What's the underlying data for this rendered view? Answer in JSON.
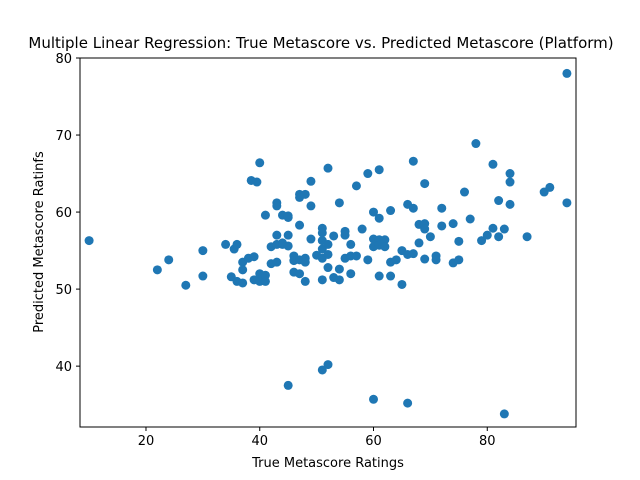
{
  "chart_data": {
    "type": "scatter",
    "title": "Multiple Linear Regression: True Metascore vs. Predicted Metascore (Platform)",
    "xlabel": "True Metascore Ratings",
    "ylabel": "Predicted Metascore Ratinfs",
    "xlim": [
      8.4,
      95.6
    ],
    "ylim": [
      32.1,
      80
    ],
    "xticks": [
      20,
      40,
      60,
      80
    ],
    "yticks": [
      40,
      50,
      60,
      70,
      80
    ],
    "grid": false,
    "marker_color": "#1f77b4",
    "series": [
      {
        "points": [
          [
            10,
            56.3
          ],
          [
            22,
            52.5
          ],
          [
            24,
            53.8
          ],
          [
            27,
            50.5
          ],
          [
            30,
            55.0
          ],
          [
            30,
            51.7
          ],
          [
            34,
            55.8
          ],
          [
            35,
            51.6
          ],
          [
            35.5,
            55.2
          ],
          [
            36,
            55.8
          ],
          [
            36,
            51.0
          ],
          [
            37,
            53.5
          ],
          [
            37,
            52.5
          ],
          [
            37,
            50.8
          ],
          [
            38,
            54.0
          ],
          [
            38.5,
            64.1
          ],
          [
            39,
            51.2
          ],
          [
            39,
            54.2
          ],
          [
            39.5,
            63.9
          ],
          [
            40,
            66.4
          ],
          [
            40,
            52.0
          ],
          [
            40,
            51.0
          ],
          [
            40.5,
            51.5
          ],
          [
            41,
            51.8
          ],
          [
            41,
            51.0
          ],
          [
            41,
            59.6
          ],
          [
            42,
            55.5
          ],
          [
            42,
            53.3
          ],
          [
            43,
            61.2
          ],
          [
            43,
            60.8
          ],
          [
            43,
            57.0
          ],
          [
            43,
            55.8
          ],
          [
            43,
            53.5
          ],
          [
            44,
            59.6
          ],
          [
            44,
            55.8
          ],
          [
            44,
            56.0
          ],
          [
            45,
            59.3
          ],
          [
            45,
            59.5
          ],
          [
            45,
            57.0
          ],
          [
            45,
            55.6
          ],
          [
            45,
            37.5
          ],
          [
            46,
            54.3
          ],
          [
            46,
            53.7
          ],
          [
            46,
            52.2
          ],
          [
            47,
            62.3
          ],
          [
            47,
            61.9
          ],
          [
            47,
            58.3
          ],
          [
            47,
            53.8
          ],
          [
            47,
            52.0
          ],
          [
            48,
            62.3
          ],
          [
            48,
            54.0
          ],
          [
            48,
            53.5
          ],
          [
            48,
            51.0
          ],
          [
            49,
            64.0
          ],
          [
            49,
            60.8
          ],
          [
            49,
            56.5
          ],
          [
            50,
            54.4
          ],
          [
            51,
            57.9
          ],
          [
            51,
            57.3
          ],
          [
            51,
            56.3
          ],
          [
            51,
            55.2
          ],
          [
            51,
            54.0
          ],
          [
            51,
            51.2
          ],
          [
            51,
            39.5
          ],
          [
            52,
            65.7
          ],
          [
            52,
            55.8
          ],
          [
            52,
            54.5
          ],
          [
            52,
            52.8
          ],
          [
            52,
            40.2
          ],
          [
            53,
            56.9
          ],
          [
            53,
            51.5
          ],
          [
            54,
            61.2
          ],
          [
            54,
            52.6
          ],
          [
            54,
            51.2
          ],
          [
            55,
            57.5
          ],
          [
            55,
            57.0
          ],
          [
            55,
            54.0
          ],
          [
            56,
            55.8
          ],
          [
            56,
            52.0
          ],
          [
            56,
            54.3
          ],
          [
            57,
            63.4
          ],
          [
            57,
            54.3
          ],
          [
            58,
            57.8
          ],
          [
            59,
            65.0
          ],
          [
            59,
            53.8
          ],
          [
            60,
            60.0
          ],
          [
            60,
            56.5
          ],
          [
            60,
            55.5
          ],
          [
            60,
            35.7
          ],
          [
            61,
            65.5
          ],
          [
            61,
            59.2
          ],
          [
            61,
            56.4
          ],
          [
            61,
            55.7
          ],
          [
            61,
            51.7
          ],
          [
            62,
            56.4
          ],
          [
            62,
            55.5
          ],
          [
            63,
            60.2
          ],
          [
            63,
            53.5
          ],
          [
            63,
            51.7
          ],
          [
            64,
            53.8
          ],
          [
            65,
            55.0
          ],
          [
            65,
            50.6
          ],
          [
            66,
            61.0
          ],
          [
            66,
            54.5
          ],
          [
            66,
            35.2
          ],
          [
            67,
            66.6
          ],
          [
            67,
            60.5
          ],
          [
            67,
            54.6
          ],
          [
            68,
            58.4
          ],
          [
            68,
            56.0
          ],
          [
            69,
            63.7
          ],
          [
            69,
            58.5
          ],
          [
            69,
            57.8
          ],
          [
            69,
            53.9
          ],
          [
            70,
            56.8
          ],
          [
            71,
            54.3
          ],
          [
            71,
            53.8
          ],
          [
            72,
            60.5
          ],
          [
            72,
            58.2
          ],
          [
            74,
            58.5
          ],
          [
            74,
            53.4
          ],
          [
            75,
            56.2
          ],
          [
            75,
            53.8
          ],
          [
            76,
            62.6
          ],
          [
            77,
            59.1
          ],
          [
            78,
            68.9
          ],
          [
            79,
            56.3
          ],
          [
            80,
            57.0
          ],
          [
            81,
            66.2
          ],
          [
            81,
            57.9
          ],
          [
            82,
            61.5
          ],
          [
            82,
            56.8
          ],
          [
            83,
            57.8
          ],
          [
            83,
            33.8
          ],
          [
            84,
            65.0
          ],
          [
            84,
            63.9
          ],
          [
            84,
            61.0
          ],
          [
            87,
            56.8
          ],
          [
            90,
            62.6
          ],
          [
            91,
            63.2
          ],
          [
            94,
            78.0
          ],
          [
            94,
            61.2
          ]
        ]
      }
    ]
  }
}
